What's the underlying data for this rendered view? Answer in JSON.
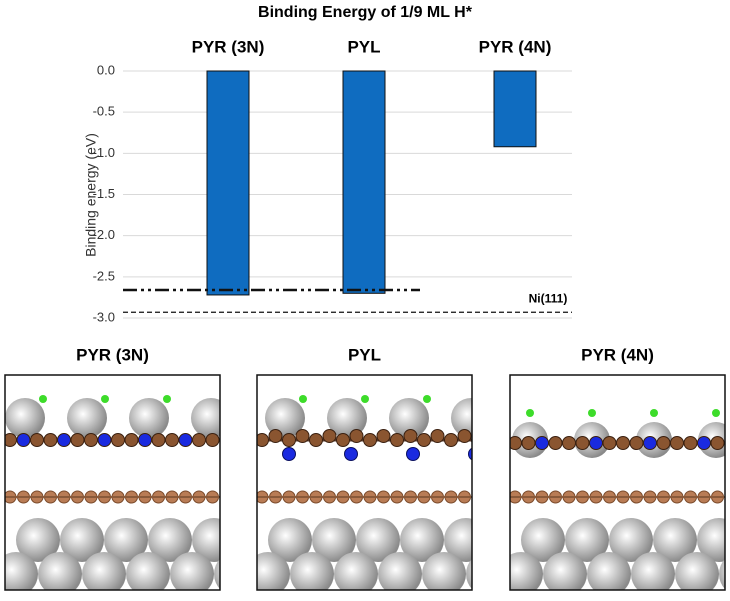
{
  "chart_data": {
    "type": "bar",
    "title": "Binding Energy of 1/9 ML H*",
    "y_label": "Binding energy (eV)",
    "categories": [
      "PYR (3N)",
      "PYL",
      "PYR (4N)"
    ],
    "values": [
      -2.72,
      -2.7,
      -0.92
    ],
    "color": "#0f6cc0",
    "ylim": [
      0,
      -3
    ],
    "yticks": [
      {
        "value": 0,
        "label": "0.0"
      },
      -0.5,
      {
        "value": -1,
        "label": "-1.0"
      },
      -1.5,
      {
        "value": -2,
        "label": "-2.0"
      },
      -2.5,
      {
        "value": -3,
        "label": "-3.0"
      }
    ],
    "grid": true,
    "reference_lines": [
      {
        "value": -2.66,
        "style": "dash-dot"
      },
      {
        "value": -2.93,
        "style": "dashed",
        "label": "Ni(111)"
      }
    ]
  },
  "panels": [
    {
      "title": "PYR (3N)"
    },
    {
      "title": "PYL"
    },
    {
      "title": "PYR (4N)"
    }
  ]
}
